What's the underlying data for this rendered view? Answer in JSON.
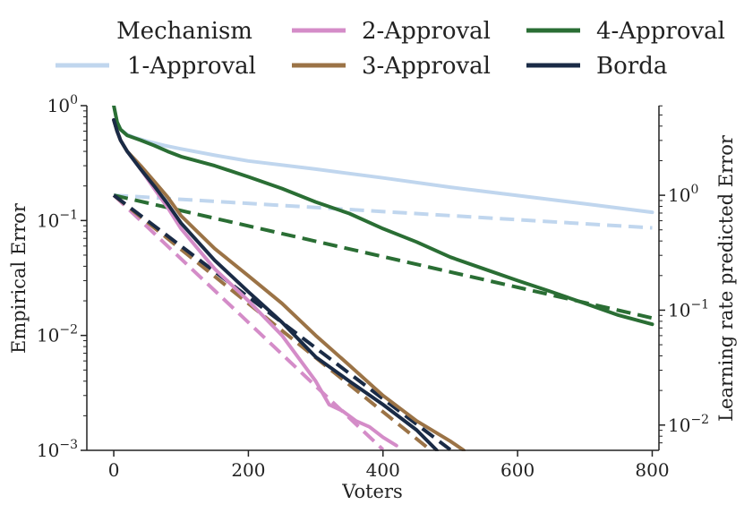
{
  "chart_data": {
    "type": "line",
    "title": "",
    "xlabel": "Voters",
    "ylabel": "Empirical Error",
    "y2label": "Learning rate predicted Error",
    "xlim": [
      -40,
      810
    ],
    "xticks": [
      0,
      200,
      400,
      600,
      800
    ],
    "xtick_labels": [
      "0",
      "200",
      "400",
      "600",
      "800"
    ],
    "ylim_log10": [
      -3,
      0
    ],
    "y_scale": "log",
    "yticks": [
      1,
      0.1,
      0.01,
      0.001
    ],
    "ytick_labels": [
      {
        "base": "10",
        "exp": "0"
      },
      {
        "base": "10",
        "exp": "−1"
      },
      {
        "base": "10",
        "exp": "−2"
      },
      {
        "base": "10",
        "exp": "−3"
      }
    ],
    "y2lim_log10": [
      -2.22,
      0.78
    ],
    "y2_scale": "log",
    "y2ticks": [
      1,
      0.1,
      0.01
    ],
    "y2tick_labels": [
      {
        "base": "10",
        "exp": "0"
      },
      {
        "base": "10",
        "exp": "−1"
      },
      {
        "base": "10",
        "exp": "−2"
      }
    ],
    "legend": {
      "title": "Mechanism",
      "position": "top",
      "entries": [
        "1-Approval",
        "2-Approval",
        "3-Approval",
        "4-Approval",
        "Borda"
      ]
    },
    "colors": {
      "1-Approval": "#c0d6ee",
      "2-Approval": "#d48cc8",
      "3-Approval": "#9b7346",
      "4-Approval": "#2a6e34",
      "Borda": "#1a2b46"
    },
    "series_empirical": [
      {
        "name": "1-Approval",
        "axis": "left",
        "style": "solid",
        "x": [
          0,
          5,
          10,
          20,
          30,
          50,
          75,
          100,
          150,
          200,
          300,
          400,
          500,
          600,
          700,
          800
        ],
        "y": [
          1.0,
          0.72,
          0.62,
          0.56,
          0.53,
          0.49,
          0.45,
          0.42,
          0.37,
          0.33,
          0.28,
          0.235,
          0.195,
          0.165,
          0.14,
          0.118
        ]
      },
      {
        "name": "2-Approval",
        "axis": "left",
        "style": "solid",
        "x": [
          0,
          5,
          10,
          20,
          40,
          60,
          80,
          100,
          150,
          200,
          250,
          300,
          320,
          340,
          360,
          380,
          400,
          420
        ],
        "y": [
          0.75,
          0.6,
          0.5,
          0.4,
          0.28,
          0.19,
          0.13,
          0.085,
          0.038,
          0.02,
          0.01,
          0.004,
          0.0025,
          0.0022,
          0.0018,
          0.0016,
          0.0013,
          0.0011
        ]
      },
      {
        "name": "3-Approval",
        "axis": "left",
        "style": "solid",
        "x": [
          0,
          5,
          10,
          20,
          40,
          60,
          80,
          100,
          150,
          200,
          250,
          300,
          350,
          400,
          450,
          500,
          520
        ],
        "y": [
          0.75,
          0.6,
          0.5,
          0.4,
          0.3,
          0.22,
          0.16,
          0.11,
          0.057,
          0.033,
          0.019,
          0.01,
          0.0055,
          0.003,
          0.0018,
          0.0012,
          0.001
        ]
      },
      {
        "name": "4-Approval",
        "axis": "left",
        "style": "solid",
        "x": [
          0,
          5,
          10,
          20,
          40,
          60,
          80,
          100,
          150,
          200,
          250,
          300,
          350,
          400,
          450,
          500,
          550,
          600,
          650,
          700,
          750,
          800
        ],
        "y": [
          1.0,
          0.72,
          0.62,
          0.55,
          0.5,
          0.45,
          0.4,
          0.36,
          0.3,
          0.24,
          0.19,
          0.145,
          0.115,
          0.085,
          0.065,
          0.048,
          0.038,
          0.03,
          0.024,
          0.019,
          0.015,
          0.0125
        ]
      },
      {
        "name": "Borda",
        "axis": "left",
        "style": "solid",
        "x": [
          0,
          5,
          10,
          20,
          40,
          60,
          80,
          100,
          150,
          200,
          250,
          300,
          350,
          400,
          450,
          480
        ],
        "y": [
          0.75,
          0.6,
          0.5,
          0.4,
          0.28,
          0.2,
          0.14,
          0.095,
          0.045,
          0.024,
          0.013,
          0.0065,
          0.004,
          0.0025,
          0.0015,
          0.001
        ]
      }
    ],
    "series_predicted": [
      {
        "name": "1-Approval",
        "axis": "right",
        "style": "dashed",
        "x": [
          0,
          800
        ],
        "y": [
          1.0,
          0.52
        ]
      },
      {
        "name": "2-Approval",
        "axis": "right",
        "style": "dashed",
        "x": [
          0,
          400
        ],
        "y": [
          1.0,
          0.0061
        ]
      },
      {
        "name": "3-Approval",
        "axis": "right",
        "style": "dashed",
        "x": [
          0,
          470
        ],
        "y": [
          1.0,
          0.0061
        ]
      },
      {
        "name": "4-Approval",
        "axis": "right",
        "style": "dashed",
        "x": [
          0,
          800
        ],
        "y": [
          1.0,
          0.0855
        ]
      },
      {
        "name": "Borda",
        "axis": "right",
        "style": "dashed",
        "x": [
          0,
          500
        ],
        "y": [
          1.0,
          0.0061
        ]
      }
    ]
  }
}
